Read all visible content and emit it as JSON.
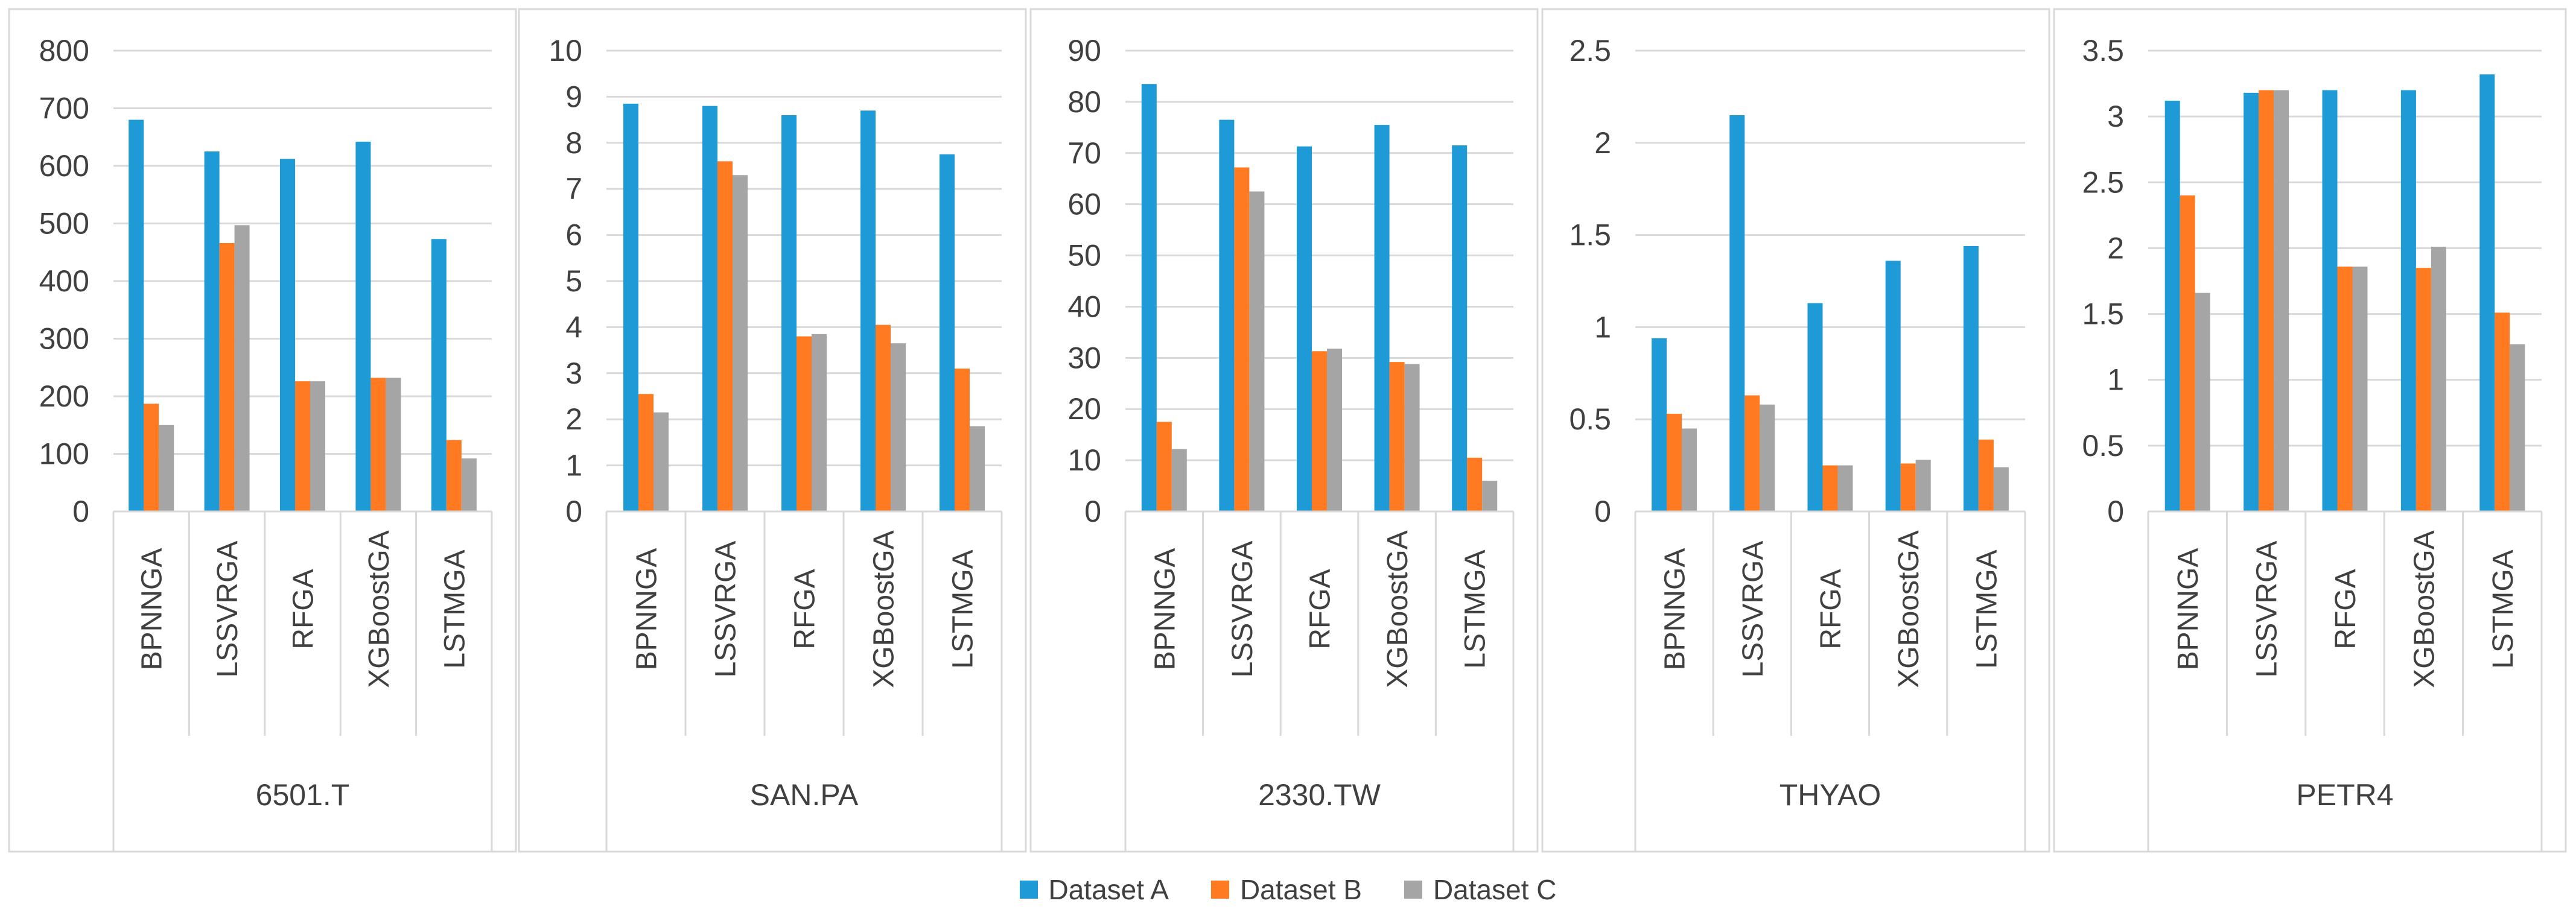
{
  "colors": {
    "dataset_a": "#1E9BD7",
    "dataset_b": "#FF7A21",
    "dataset_c": "#A5A5A5",
    "grid": "#D9D9D9",
    "axis_text": "#404040"
  },
  "legend": [
    "Dataset A",
    "Dataset B",
    "Dataset C"
  ],
  "chart_data": [
    {
      "type": "bar",
      "title": "6501.T",
      "categories": [
        "BPNNGA",
        "LSSVRGA",
        "RFGA",
        "XGBoostGA",
        "LSTMGA"
      ],
      "yticks": [
        "0",
        "100",
        "200",
        "300",
        "400",
        "500",
        "600",
        "700",
        "800"
      ],
      "ylim": [
        0,
        800
      ],
      "series": [
        {
          "name": "Dataset A",
          "values": [
            680,
            625,
            612,
            642,
            473
          ]
        },
        {
          "name": "Dataset B",
          "values": [
            187,
            466,
            226,
            232,
            124
          ]
        },
        {
          "name": "Dataset C",
          "values": [
            150,
            497,
            226,
            232,
            92
          ]
        }
      ]
    },
    {
      "type": "bar",
      "title": "SAN.PA",
      "categories": [
        "BPNNGA",
        "LSSVRGA",
        "RFGA",
        "XGBoostGA",
        "LSTMGA"
      ],
      "yticks": [
        "0",
        "1",
        "2",
        "3",
        "4",
        "5",
        "6",
        "7",
        "8",
        "9",
        "10"
      ],
      "ylim": [
        0,
        10
      ],
      "series": [
        {
          "name": "Dataset A",
          "values": [
            8.85,
            8.8,
            8.6,
            8.7,
            7.75
          ]
        },
        {
          "name": "Dataset B",
          "values": [
            2.55,
            7.6,
            3.8,
            4.05,
            3.1
          ]
        },
        {
          "name": "Dataset C",
          "values": [
            2.15,
            7.3,
            3.85,
            3.65,
            1.85
          ]
        }
      ]
    },
    {
      "type": "bar",
      "title": "2330.TW",
      "categories": [
        "BPNNGA",
        "LSSVRGA",
        "RFGA",
        "XGBoostGA",
        "LSTMGA"
      ],
      "yticks": [
        "0",
        "10",
        "20",
        "30",
        "40",
        "50",
        "60",
        "70",
        "80",
        "90"
      ],
      "ylim": [
        0,
        90
      ],
      "series": [
        {
          "name": "Dataset A",
          "values": [
            83.5,
            76.5,
            71.3,
            75.5,
            71.5
          ]
        },
        {
          "name": "Dataset B",
          "values": [
            17.5,
            67.2,
            31.3,
            29.2,
            10.5
          ]
        },
        {
          "name": "Dataset C",
          "values": [
            12.2,
            62.5,
            31.8,
            28.8,
            6
          ]
        }
      ]
    },
    {
      "type": "bar",
      "title": "THYAO",
      "categories": [
        "BPNNGA",
        "LSSVRGA",
        "RFGA",
        "XGBoostGA",
        "LSTMGA"
      ],
      "yticks": [
        "0",
        "0.5",
        "1",
        "1.5",
        "2",
        "2.5"
      ],
      "ylim": [
        0,
        2.5
      ],
      "series": [
        {
          "name": "Dataset A",
          "values": [
            0.94,
            2.15,
            1.13,
            1.36,
            1.44
          ]
        },
        {
          "name": "Dataset B",
          "values": [
            0.53,
            0.63,
            0.25,
            0.26,
            0.39
          ]
        },
        {
          "name": "Dataset C",
          "values": [
            0.45,
            0.58,
            0.25,
            0.28,
            0.24
          ]
        }
      ]
    },
    {
      "type": "bar",
      "title": "PETR4",
      "categories": [
        "BPNNGA",
        "LSSVRGA",
        "RFGA",
        "XGBoostGA",
        "LSTMGA"
      ],
      "yticks": [
        "0",
        "0.5",
        "1",
        "1.5",
        "2",
        "2.5",
        "3",
        "3.5"
      ],
      "ylim": [
        0,
        3.5
      ],
      "series": [
        {
          "name": "Dataset A",
          "values": [
            3.12,
            3.18,
            3.2,
            3.2,
            3.32
          ]
        },
        {
          "name": "Dataset B",
          "values": [
            2.4,
            3.2,
            1.86,
            1.85,
            1.51
          ]
        },
        {
          "name": "Dataset C",
          "values": [
            1.66,
            3.2,
            1.86,
            2.01,
            1.27
          ]
        }
      ]
    }
  ]
}
